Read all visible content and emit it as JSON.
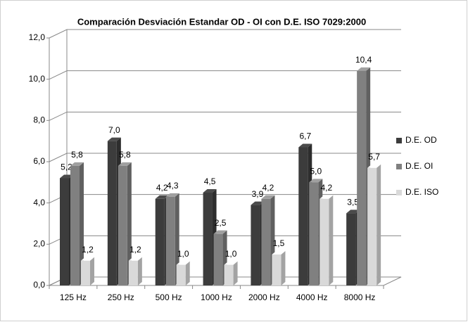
{
  "chart_data": {
    "type": "bar3d",
    "title": "Comparación Desviación  Estandar OD - OI con D.E. ISO 7029:2000",
    "categories": [
      "125 Hz",
      "250 Hz",
      "500 Hz",
      "1000 Hz",
      "2000 Hz",
      "4000 Hz",
      "8000 Hz"
    ],
    "series": [
      {
        "name": "D.E. OD",
        "color": "#3c3c3c",
        "values": [
          5.2,
          7.0,
          4.2,
          4.5,
          3.9,
          6.7,
          3.5
        ],
        "value_labels": [
          "5,2",
          "7,0",
          "4,2",
          "4,5",
          "3,9",
          "6,7",
          "3,5"
        ]
      },
      {
        "name": "D.E. OI",
        "color": "#808080",
        "values": [
          5.8,
          5.8,
          4.3,
          2.5,
          4.2,
          5.0,
          10.4
        ],
        "value_labels": [
          "5,8",
          "5,8",
          "4,3",
          "2,5",
          "4,2",
          "5,0",
          "10,4"
        ]
      },
      {
        "name": "D.E. ISO",
        "color": "#d9d9d9",
        "values": [
          1.2,
          1.2,
          1.0,
          1.0,
          1.5,
          4.2,
          5.7
        ],
        "value_labels": [
          "1,2",
          "1,2",
          "1,0",
          "1,0",
          "1,5",
          "4,2",
          "5,7"
        ]
      }
    ],
    "ylim": [
      0,
      12
    ],
    "yticks": [
      {
        "value": 0,
        "label": "0,0"
      },
      {
        "value": 2,
        "label": "2,0"
      },
      {
        "value": 4,
        "label": "4,0"
      },
      {
        "value": 6,
        "label": "6,0"
      },
      {
        "value": 8,
        "label": "8,0"
      },
      {
        "value": 10,
        "label": "10,0"
      },
      {
        "value": 12,
        "label": "12,0"
      }
    ],
    "grid": true,
    "legend": "right"
  }
}
